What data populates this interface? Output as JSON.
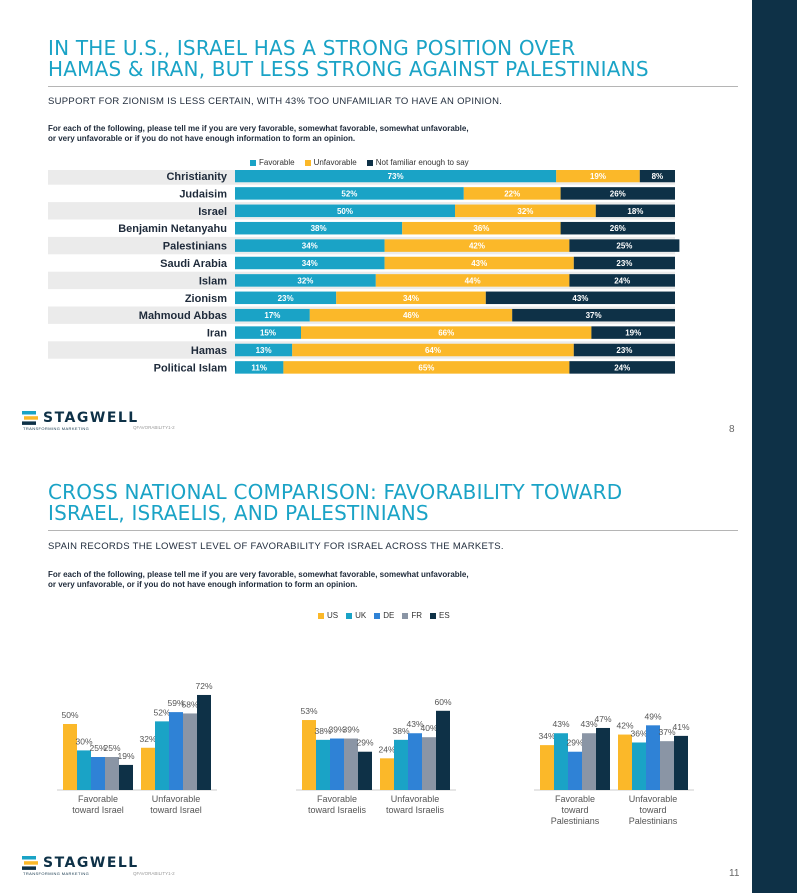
{
  "colors": {
    "favorable": "#1aa3c6",
    "unfavorable": "#fbb829",
    "not_familiar": "#0e3147",
    "US": "#fbb829",
    "UK": "#1aa3c6",
    "DE": "#2f82d6",
    "FR": "#8a95a5",
    "ES": "#0e3147"
  },
  "slide1": {
    "title_line1": "IN THE U.S., ISRAEL HAS A STRONG POSITION OVER",
    "title_line2": "HAMAS & IRAN, BUT LESS STRONG AGAINST PALESTINIANS",
    "subtitle": "SUPPORT FOR ZIONISM IS LESS CERTAIN, WITH 43% TOO UNFAMILIAR TO HAVE AN OPINION.",
    "question_line1": "For each of the following, please tell me if you are very favorable, somewhat favorable, somewhat unfavorable,",
    "question_line2": "or very unfavorable or if you do not have enough information to form an opinion.",
    "legend": [
      "Favorable",
      "Unfavorable",
      "Not familiar enough to say"
    ],
    "logo": "STAGWELL",
    "logo_tag": "TRANSFORMING MARKETING",
    "qref": "QFAVORABILITY1-2",
    "page_number": "8"
  },
  "slide2": {
    "title_line1": "CROSS NATIONAL COMPARISON: FAVORABILITY TOWARD",
    "title_line2": "ISRAEL, ISRAELIS, AND PALESTINIANS",
    "subtitle": "SPAIN RECORDS THE LOWEST LEVEL OF FAVORABILITY FOR ISRAEL ACROSS THE MARKETS.",
    "question_line1": "For each of the following, please tell me if you are very favorable, somewhat favorable, somewhat unfavorable,",
    "question_line2": "or very unfavorable, or if you do not have enough information to form an opinion.",
    "legend": [
      "US",
      "UK",
      "DE",
      "FR",
      "ES"
    ],
    "logo": "STAGWELL",
    "logo_tag": "TRANSFORMING MARKETING",
    "qref": "QFAVORABILITY1-2",
    "page_number": "11"
  },
  "chart_data": [
    {
      "type": "bar",
      "orientation": "horizontal-stacked",
      "title": "IN THE U.S., ISRAEL HAS A STRONG POSITION OVER HAMAS & IRAN, BUT LESS STRONG AGAINST PALESTINIANS",
      "categories": [
        "Christianity",
        "Judaisim",
        "Israel",
        "Benjamin Netanyahu",
        "Palestinians",
        "Saudi Arabia",
        "Islam",
        "Zionism",
        "Mahmoud Abbas",
        "Iran",
        "Hamas",
        "Political Islam"
      ],
      "series": [
        {
          "name": "Favorable",
          "values": [
            73,
            52,
            50,
            38,
            34,
            34,
            32,
            23,
            17,
            15,
            13,
            11
          ]
        },
        {
          "name": "Unfavorable",
          "values": [
            19,
            22,
            32,
            36,
            42,
            43,
            44,
            34,
            46,
            66,
            64,
            65
          ]
        },
        {
          "name": "Not familiar enough to say",
          "values": [
            8,
            26,
            18,
            26,
            25,
            23,
            24,
            43,
            37,
            19,
            23,
            24
          ]
        }
      ],
      "xlim": [
        0,
        100
      ],
      "value_suffix": "%"
    },
    {
      "type": "bar",
      "orientation": "vertical-grouped",
      "title": "CROSS NATIONAL COMPARISON: FAVORABILITY TOWARD ISRAEL, ISRAELIS, AND PALESTINIANS",
      "panels": [
        {
          "categories": [
            "Favorable toward Israel",
            "Unfavorable toward Israel"
          ],
          "series": [
            {
              "name": "US",
              "values": [
                50,
                32
              ]
            },
            {
              "name": "UK",
              "values": [
                30,
                52
              ]
            },
            {
              "name": "DE",
              "values": [
                25,
                59
              ]
            },
            {
              "name": "FR",
              "values": [
                25,
                58
              ]
            },
            {
              "name": "ES",
              "values": [
                19,
                72
              ]
            }
          ]
        },
        {
          "categories": [
            "Favorable toward Israelis",
            "Unfavorable toward Israelis"
          ],
          "series": [
            {
              "name": "US",
              "values": [
                53,
                24
              ]
            },
            {
              "name": "UK",
              "values": [
                38,
                38
              ]
            },
            {
              "name": "DE",
              "values": [
                39,
                43
              ]
            },
            {
              "name": "FR",
              "values": [
                39,
                40
              ]
            },
            {
              "name": "ES",
              "values": [
                29,
                60
              ]
            }
          ]
        },
        {
          "categories": [
            "Favorable toward Palestinians",
            "Unfavorable toward Palestinians"
          ],
          "series": [
            {
              "name": "US",
              "values": [
                34,
                42
              ]
            },
            {
              "name": "UK",
              "values": [
                43,
                36
              ]
            },
            {
              "name": "DE",
              "values": [
                29,
                49
              ]
            },
            {
              "name": "FR",
              "values": [
                43,
                37
              ]
            },
            {
              "name": "ES",
              "values": [
                47,
                41
              ]
            }
          ]
        }
      ],
      "ylim": [
        0,
        80
      ],
      "value_suffix": "%"
    }
  ]
}
